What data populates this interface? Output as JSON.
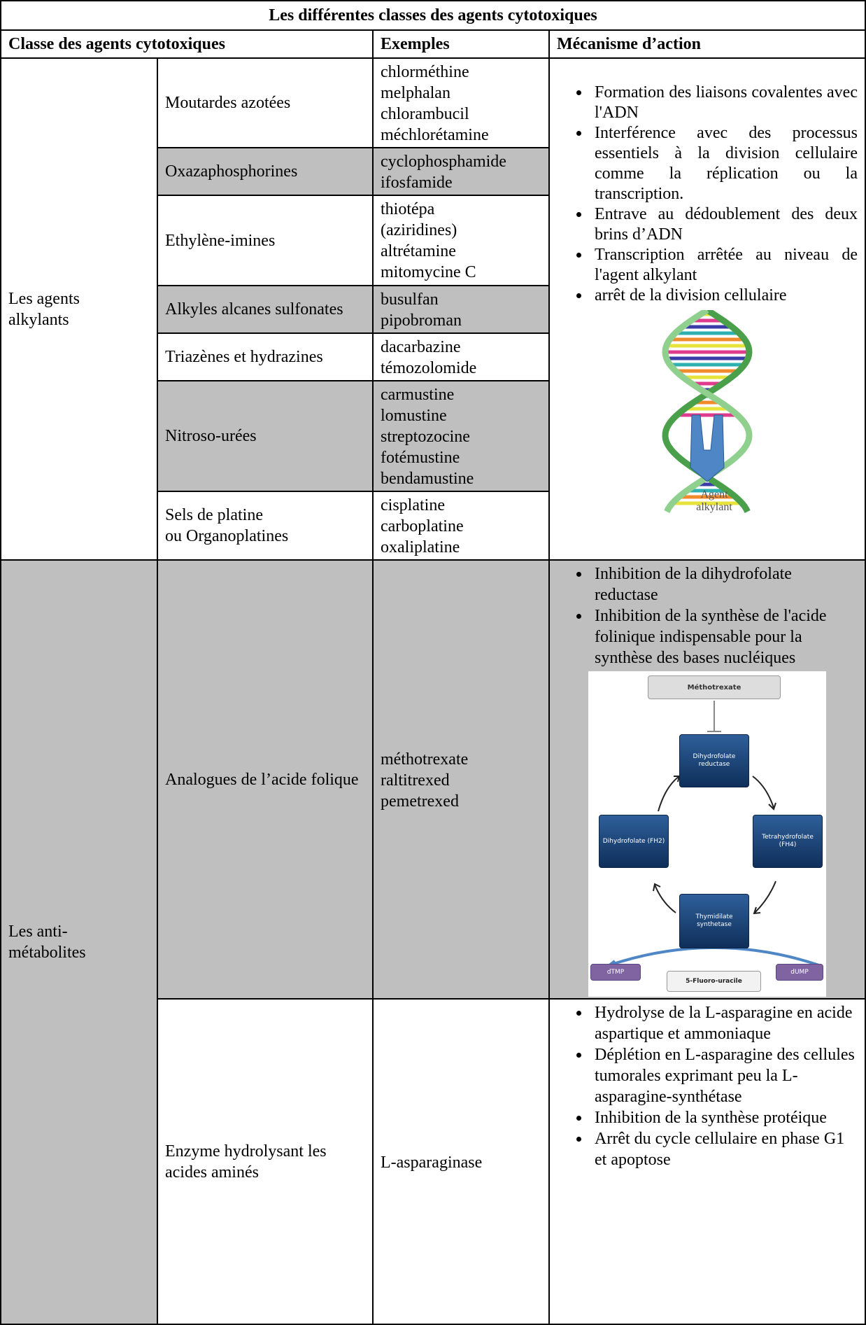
{
  "table": {
    "title": "Les différentes classes des agents cytotoxiques",
    "header": [
      "Classe des agents cytotoxiques",
      "Exemples",
      "Mécanisme d’action"
    ],
    "groups": [
      {
        "name": "Les agents alkylants",
        "classes": [
          {
            "name": "Moutardes azotées",
            "examples": [
              "chlorméthine",
              "melphalan",
              "chlorambucil",
              "méchlorétamine"
            ]
          },
          {
            "name": "Oxazaphosphorines",
            "examples": [
              "cyclophosphamide",
              "ifosfamide"
            ]
          },
          {
            "name": "Ethylène-imines",
            "examples": [
              "thiotépa",
              "(aziridines)",
              "altrétamine",
              "mitomycine C"
            ]
          },
          {
            "name": "Alkyles alcanes sulfonates",
            "examples": [
              "busulfan",
              "pipobroman"
            ]
          },
          {
            "name": "Triazènes et hydrazines",
            "examples": [
              "dacarbazine",
              "témozolomide"
            ]
          },
          {
            "name": "Nitroso-urées",
            "examples": [
              "carmustine",
              "lomustine",
              "streptozocine",
              "fotémustine",
              "bendamustine"
            ]
          },
          {
            "name": "Sels de platine\nou Organoplatines",
            "examples": [
              "cisplatine",
              "carboplatine",
              "oxaliplatine"
            ]
          }
        ],
        "mechanism": [
          "Formation des liaisons covalentes avec l'ADN",
          "Interférence avec des processus essentiels à la division cellulaire comme la réplication ou la transcription.",
          "Entrave au dédoublement des deux brins d’ADN",
          "Transcription arrêtée au niveau de l'agent alkylant",
          "arrêt de la division cellulaire"
        ],
        "figure": {
          "label": "Agent alkylant"
        }
      },
      {
        "name": "Les anti-métabolites",
        "classes": [
          {
            "name": "Analogues de l’acide folique",
            "examples": [
              "méthotrexate",
              "raltitrexed",
              "pemetrexed"
            ],
            "mechanism": [
              "Inhibition de la dihydrofolate reductase",
              "Inhibition de la synthèse de l'acide folinique indispensable pour la synthèse des bases nucléiques"
            ],
            "figure": {
              "top": "Méthotrexate",
              "enzyme": "Dihydrofolate reductase",
              "left": "Dihydrofolate (FH2)",
              "right": "Tetrahydrofolate (FH4)",
              "bottom": "Thymidilate synthetase",
              "out": "dTMP",
              "drug": "5-Fluoro-uracile",
              "in": "dUMP"
            }
          },
          {
            "name": "Enzyme hydrolysant les acides aminés",
            "examples": [
              "L-asparaginase"
            ],
            "mechanism": [
              "Hydrolyse de la L-asparagine en acide aspartique et ammoniaque",
              "Déplétion en L-asparagine des cellules tumorales  exprimant peu la  L-asparagine-synthétase",
              "Inhibition de la synthèse protéique",
              "Arrêt du cycle cellulaire en phase G1 et apoptose"
            ]
          }
        ]
      }
    ]
  }
}
